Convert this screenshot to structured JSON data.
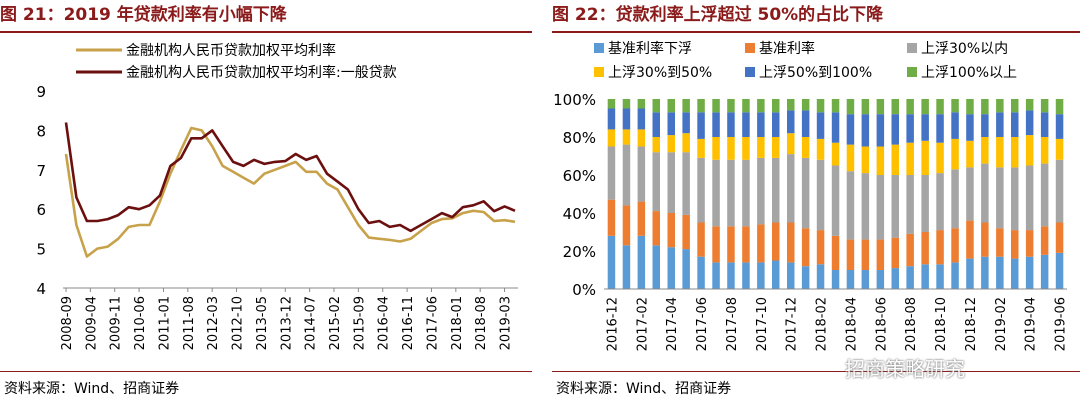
{
  "left": {
    "title": "图 21：2019 年贷款利率有小幅下降",
    "source": "资料来源：Wind、招商证券",
    "chart_data": {
      "type": "line",
      "x": [
        "2008-09",
        "2008-12",
        "2009-03",
        "2009-06",
        "2009-09",
        "2009-12",
        "2010-03",
        "2010-06",
        "2010-09",
        "2010-12",
        "2011-03",
        "2011-06",
        "2011-09",
        "2011-12",
        "2012-03",
        "2012-06",
        "2012-09",
        "2012-12",
        "2013-03",
        "2013-06",
        "2013-09",
        "2013-12",
        "2014-03",
        "2014-06",
        "2014-09",
        "2014-12",
        "2015-03",
        "2015-06",
        "2015-09",
        "2015-12",
        "2016-03",
        "2016-06",
        "2016-09",
        "2016-12",
        "2017-03",
        "2017-06",
        "2017-09",
        "2017-12",
        "2018-03",
        "2018-06",
        "2018-09",
        "2018-12",
        "2019-03",
        "2019-06"
      ],
      "xticks": [
        "2008-09",
        "2009-04",
        "2009-11",
        "2010-06",
        "2011-01",
        "2011-08",
        "2012-03",
        "2012-10",
        "2013-05",
        "2013-12",
        "2014-07",
        "2015-02",
        "2015-09",
        "2016-04",
        "2016-11",
        "2017-06",
        "2018-01",
        "2018-08",
        "2019-03"
      ],
      "ylim": [
        4,
        9
      ],
      "yticks": [
        4,
        5,
        6,
        7,
        8,
        9
      ],
      "legend_position": "top",
      "series": [
        {
          "name": "金融机构人民币贷款加权平均利率",
          "color": "#c8a24a",
          "values": [
            7.4,
            5.6,
            4.8,
            5.0,
            5.05,
            5.25,
            5.55,
            5.6,
            5.6,
            6.2,
            6.9,
            7.5,
            8.06,
            8.0,
            7.6,
            7.1,
            6.95,
            6.8,
            6.65,
            6.9,
            7.0,
            7.1,
            7.2,
            6.95,
            6.95,
            6.65,
            6.5,
            6.05,
            5.6,
            5.28,
            5.25,
            5.22,
            5.18,
            5.25,
            5.45,
            5.65,
            5.75,
            5.77,
            5.9,
            5.96,
            5.93,
            5.7,
            5.72,
            5.68
          ]
        },
        {
          "name": "金融机构人民币贷款加权平均利率:一般贷款",
          "color": "#6b0f0f",
          "values": [
            8.2,
            6.3,
            5.7,
            5.7,
            5.75,
            5.85,
            6.05,
            6.0,
            6.1,
            6.35,
            7.1,
            7.3,
            7.8,
            7.8,
            8.0,
            7.6,
            7.2,
            7.1,
            7.25,
            7.15,
            7.2,
            7.22,
            7.4,
            7.25,
            7.35,
            6.9,
            6.7,
            6.5,
            6.0,
            5.65,
            5.7,
            5.55,
            5.6,
            5.45,
            5.6,
            5.75,
            5.9,
            5.8,
            6.05,
            6.1,
            6.2,
            5.95,
            6.07,
            5.96
          ]
        }
      ]
    }
  },
  "right": {
    "title": "图 22：贷款利率上浮超过 50%的占比下降",
    "source": "资料来源：Wind、招商证券",
    "watermark": "招商策略研究",
    "chart_data": {
      "type": "bar",
      "stacked": true,
      "ylim": [
        0,
        100
      ],
      "yticks": [
        "0%",
        "20%",
        "40%",
        "60%",
        "80%",
        "100%"
      ],
      "legend_position": "top",
      "xticks": [
        "2016-12",
        "2017-02",
        "2017-04",
        "2017-06",
        "2017-08",
        "2017-10",
        "2017-12",
        "2018-02",
        "2018-04",
        "2018-06",
        "2018-08",
        "2018-10",
        "2018-12",
        "2019-02",
        "2019-04",
        "2019-06"
      ],
      "categories": [
        "2016-12",
        "2017-01",
        "2017-02",
        "2017-03",
        "2017-04",
        "2017-05",
        "2017-06",
        "2017-07",
        "2017-08",
        "2017-09",
        "2017-10",
        "2017-11",
        "2017-12",
        "2018-01",
        "2018-02",
        "2018-03",
        "2018-04",
        "2018-05",
        "2018-06",
        "2018-07",
        "2018-08",
        "2018-09",
        "2018-10",
        "2018-11",
        "2018-12",
        "2019-01",
        "2019-02",
        "2019-03",
        "2019-04",
        "2019-05",
        "2019-06"
      ],
      "series": [
        {
          "name": "基准利率下浮",
          "color": "#5b9bd5",
          "values": [
            28,
            23,
            28,
            23,
            22,
            21,
            17,
            14,
            14,
            14,
            14,
            15,
            14,
            12,
            13,
            10,
            10,
            10,
            10,
            11,
            12,
            13,
            13,
            14,
            16,
            17,
            17,
            16,
            17,
            18,
            19
          ]
        },
        {
          "name": "基准利率",
          "color": "#ed7d31",
          "values": [
            19,
            21,
            18,
            18,
            18,
            18,
            18,
            19,
            19,
            19,
            20,
            20,
            21,
            20,
            18,
            18,
            16,
            16,
            16,
            16,
            17,
            17,
            18,
            18,
            20,
            18,
            15,
            15,
            14,
            15,
            16
          ]
        },
        {
          "name": "上浮30%以内",
          "color": "#a5a5a5",
          "values": [
            28,
            32,
            29,
            31,
            32,
            33,
            34,
            35,
            35,
            35,
            35,
            34,
            36,
            37,
            37,
            37,
            36,
            35,
            34,
            33,
            31,
            30,
            30,
            31,
            28,
            31,
            32,
            33,
            34,
            33,
            33
          ]
        },
        {
          "name": "上浮30%到50%",
          "color": "#ffc000",
          "values": [
            9,
            8,
            9,
            8,
            9,
            10,
            10,
            12,
            12,
            12,
            11,
            11,
            11,
            11,
            11,
            12,
            14,
            14,
            15,
            16,
            17,
            18,
            16,
            16,
            14,
            14,
            16,
            16,
            16,
            14,
            11
          ]
        },
        {
          "name": "上浮50%到100%",
          "color": "#4472c4",
          "values": [
            11,
            11,
            11,
            13,
            12,
            11,
            14,
            13,
            13,
            13,
            13,
            13,
            12,
            14,
            14,
            16,
            16,
            17,
            17,
            16,
            15,
            14,
            15,
            14,
            14,
            12,
            13,
            13,
            13,
            13,
            13
          ]
        },
        {
          "name": "上浮100%以上",
          "color": "#70ad47",
          "values": [
            5,
            5,
            5,
            7,
            7,
            7,
            7,
            7,
            7,
            7,
            7,
            7,
            6,
            6,
            7,
            7,
            8,
            8,
            8,
            8,
            8,
            8,
            8,
            7,
            8,
            8,
            7,
            7,
            6,
            7,
            8
          ]
        }
      ]
    }
  }
}
